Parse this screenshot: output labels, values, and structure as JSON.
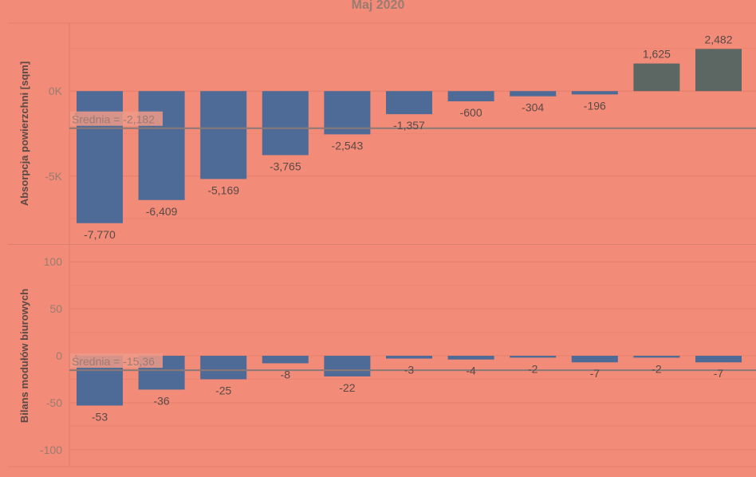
{
  "colors": {
    "background": "#f28b77",
    "negative_bar": "#4e6a96",
    "positive_bar": "#5c6663",
    "gridline": "#e4806d",
    "reference_line": "#8a7a77",
    "axis_text": "#9a7c73",
    "label_text": "#5a4a47"
  },
  "chart_data": [
    {
      "type": "bar",
      "title": "Maj 2020",
      "ylabel": "Absorpcja powierzchni [sqm]",
      "ylim": [
        -9000,
        4000
      ],
      "ytick_values": [
        0,
        -5000
      ],
      "ytick_labels": [
        "0K",
        "-5K"
      ],
      "values": [
        -7770,
        -6409,
        -5169,
        -3765,
        -2543,
        -1357,
        -600,
        -304,
        -196,
        1625,
        2482
      ],
      "value_labels": [
        "-7,770",
        "-6,409",
        "-5,169",
        "-3,765",
        "-2,543",
        "-1,357",
        "-600",
        "-304",
        "-196",
        "1,625",
        "2,482"
      ],
      "reference_line": {
        "value": -2182,
        "label": "Średnia = -2,182"
      },
      "grid": true
    },
    {
      "type": "bar",
      "ylabel": "Bilans modułów biurowych",
      "ylim": [
        -118,
        118
      ],
      "ytick_values": [
        100,
        50,
        0,
        -50,
        -100
      ],
      "ytick_labels": [
        "100",
        "50",
        "0",
        "-50",
        "-100"
      ],
      "values": [
        -53,
        -36,
        -25,
        -8,
        -22,
        -3,
        -4,
        -2,
        -7,
        -2,
        -7
      ],
      "value_labels": [
        "-53",
        "-36",
        "-25",
        "-8",
        "-22",
        "-3",
        "-4",
        "-2",
        "-7",
        "-2",
        "-7"
      ],
      "reference_line": {
        "value": -15.36,
        "label": "Średnia = -15,36"
      },
      "grid": true
    }
  ]
}
